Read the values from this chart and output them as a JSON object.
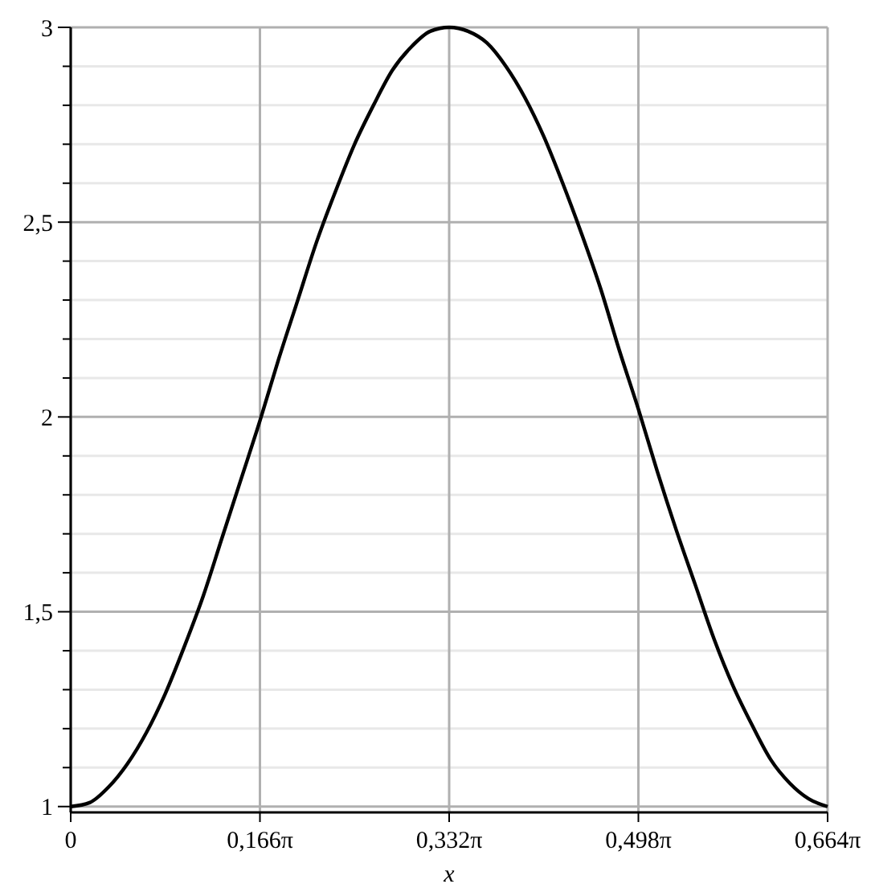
{
  "chart_data": {
    "type": "line",
    "xlabel": "x",
    "x": [
      0,
      0.0166,
      0.0332,
      0.0498,
      0.0664,
      0.083,
      0.0996,
      0.1162,
      0.1328,
      0.1494,
      0.166,
      0.1826,
      0.1992,
      0.2158,
      0.2324,
      0.249,
      0.2656,
      0.2822,
      0.2988,
      0.3154,
      0.332,
      0.3486,
      0.3652,
      0.3818,
      0.3984,
      0.415,
      0.4316,
      0.4482,
      0.4648,
      0.4814,
      0.498,
      0.5146,
      0.5312,
      0.5478,
      0.5644,
      0.581,
      0.5976,
      0.6142,
      0.6308,
      0.6474,
      0.664
    ],
    "series": [
      {
        "color": "#000000",
        "values": [
          1,
          1.01,
          1.05,
          1.11,
          1.19,
          1.29,
          1.41,
          1.54,
          1.69,
          1.84,
          1.99,
          2.15,
          2.3,
          2.45,
          2.58,
          2.7,
          2.8,
          2.89,
          2.95,
          2.99,
          3,
          2.99,
          2.96,
          2.9,
          2.82,
          2.72,
          2.6,
          2.47,
          2.33,
          2.17,
          2.02,
          1.86,
          1.71,
          1.57,
          1.43,
          1.31,
          1.21,
          1.12,
          1.06,
          1.02,
          1
        ]
      }
    ],
    "xlim": [
      0,
      0.664
    ],
    "xticks": [
      0,
      {
        "value": 0.166,
        "label": "0,166π"
      },
      {
        "value": 0.332,
        "label": "0,332π"
      },
      {
        "value": 0.498,
        "label": "0,498π"
      },
      {
        "value": 0.664,
        "label": "0,664π"
      }
    ],
    "ylim": [
      0.985,
      3
    ],
    "yticks": [
      1,
      {
        "value": 1.1,
        "label": null
      },
      {
        "value": 1.2,
        "label": null
      },
      {
        "value": 1.3,
        "label": null
      },
      {
        "value": 1.4,
        "label": null
      },
      {
        "value": 1.5,
        "label": "1,5"
      },
      {
        "value": 1.6,
        "label": null
      },
      {
        "value": 1.7,
        "label": null
      },
      {
        "value": 1.8,
        "label": null
      },
      {
        "value": 1.9,
        "label": null
      },
      2,
      {
        "value": 2.1,
        "label": null
      },
      {
        "value": 2.2,
        "label": null
      },
      {
        "value": 2.3,
        "label": null
      },
      {
        "value": 2.4,
        "label": null
      },
      {
        "value": 2.5,
        "label": "2,5"
      },
      {
        "value": 2.6,
        "label": null
      },
      {
        "value": 2.7,
        "label": null
      },
      {
        "value": 2.8,
        "label": null
      },
      {
        "value": 2.9,
        "label": null
      },
      3
    ],
    "grid": true,
    "line_style": "solid",
    "marker": "none"
  }
}
